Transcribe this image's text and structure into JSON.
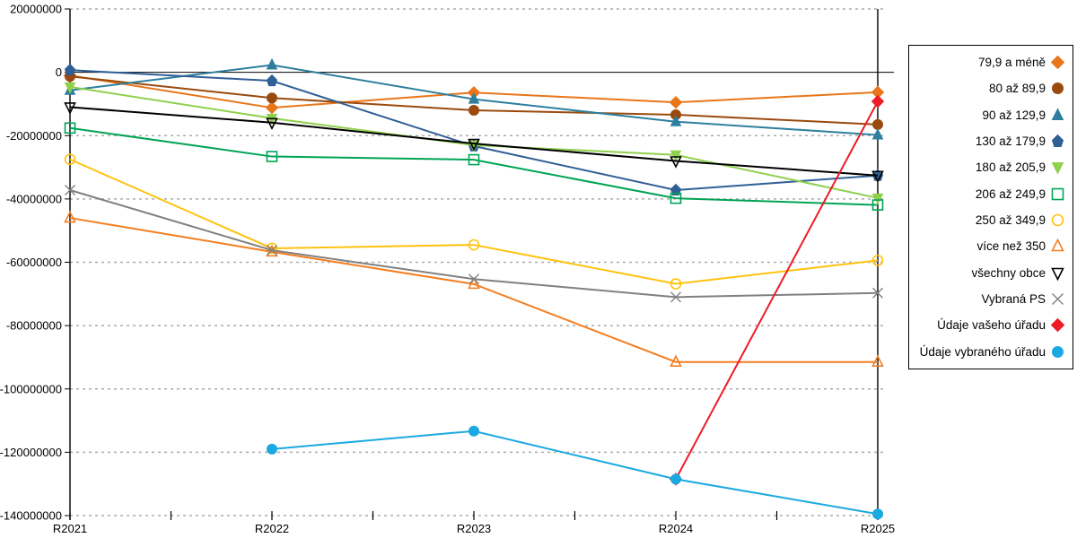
{
  "chart_data": {
    "type": "line",
    "title": "",
    "xlabel": "",
    "ylabel": "",
    "categories": [
      "R2021",
      "R2022",
      "R2023",
      "R2024",
      "R2025"
    ],
    "y_axis": {
      "min": -140000000,
      "max": 20000000,
      "step": 20000000
    },
    "grid": true,
    "legend_position": "right",
    "series": [
      {
        "name": "79,9 a méně",
        "color": "#E8761A",
        "marker": "diamond",
        "filled": true,
        "values": [
          -1000000,
          -11200000,
          -6400000,
          -9500000,
          -6300000
        ]
      },
      {
        "name": "80 až 89,9",
        "color": "#9A4A0E",
        "marker": "circle",
        "filled": true,
        "values": [
          -1300000,
          -8100000,
          -12000000,
          -13400000,
          -16500000
        ]
      },
      {
        "name": "90 až 129,9",
        "color": "#2E7F9F",
        "marker": "triangle-up",
        "filled": true,
        "values": [
          -5700000,
          2300000,
          -8500000,
          -15600000,
          -19800000
        ]
      },
      {
        "name": "130 až 179,9",
        "color": "#305F96",
        "marker": "pentagon",
        "filled": true,
        "values": [
          700000,
          -2700000,
          -23300000,
          -37200000,
          -32600000
        ]
      },
      {
        "name": "180 až 205,9",
        "color": "#8FD04C",
        "marker": "triangle-down",
        "filled": true,
        "values": [
          -4600000,
          -14500000,
          -23000000,
          -26100000,
          -39700000
        ]
      },
      {
        "name": "206 až 249,9",
        "color": "#00A455",
        "marker": "square",
        "filled": false,
        "values": [
          -17600000,
          -26600000,
          -27600000,
          -39800000,
          -41900000
        ]
      },
      {
        "name": "250 až 349,9",
        "color": "#FFC20E",
        "marker": "circle",
        "filled": false,
        "values": [
          -27500000,
          -55600000,
          -54500000,
          -66800000,
          -59400000
        ]
      },
      {
        "name": "více než 350",
        "color": "#F47E20",
        "marker": "triangle-up",
        "filled": false,
        "values": [
          -46000000,
          -56700000,
          -66900000,
          -91500000,
          -91500000
        ]
      },
      {
        "name": "všechny obce",
        "color": "#000000",
        "marker": "triangle-down",
        "filled": false,
        "values": [
          -11000000,
          -15900000,
          -22500000,
          -28000000,
          -32600000
        ]
      },
      {
        "name": "Vybraná PS",
        "color": "#808080",
        "marker": "x",
        "filled": false,
        "values": [
          -37200000,
          -56200000,
          -65300000,
          -71000000,
          -69700000
        ]
      },
      {
        "name": "Údaje vašeho úřadu",
        "color": "#EE1C25",
        "marker": "diamond",
        "filled": true,
        "values": [
          null,
          null,
          null,
          -128500000,
          -9200000
        ]
      },
      {
        "name": "Údaje vybraného úřadu",
        "color": "#1BA9E1",
        "marker": "circle",
        "filled": true,
        "values": [
          null,
          -119000000,
          -113300000,
          -128500000,
          -139500000
        ]
      }
    ]
  }
}
